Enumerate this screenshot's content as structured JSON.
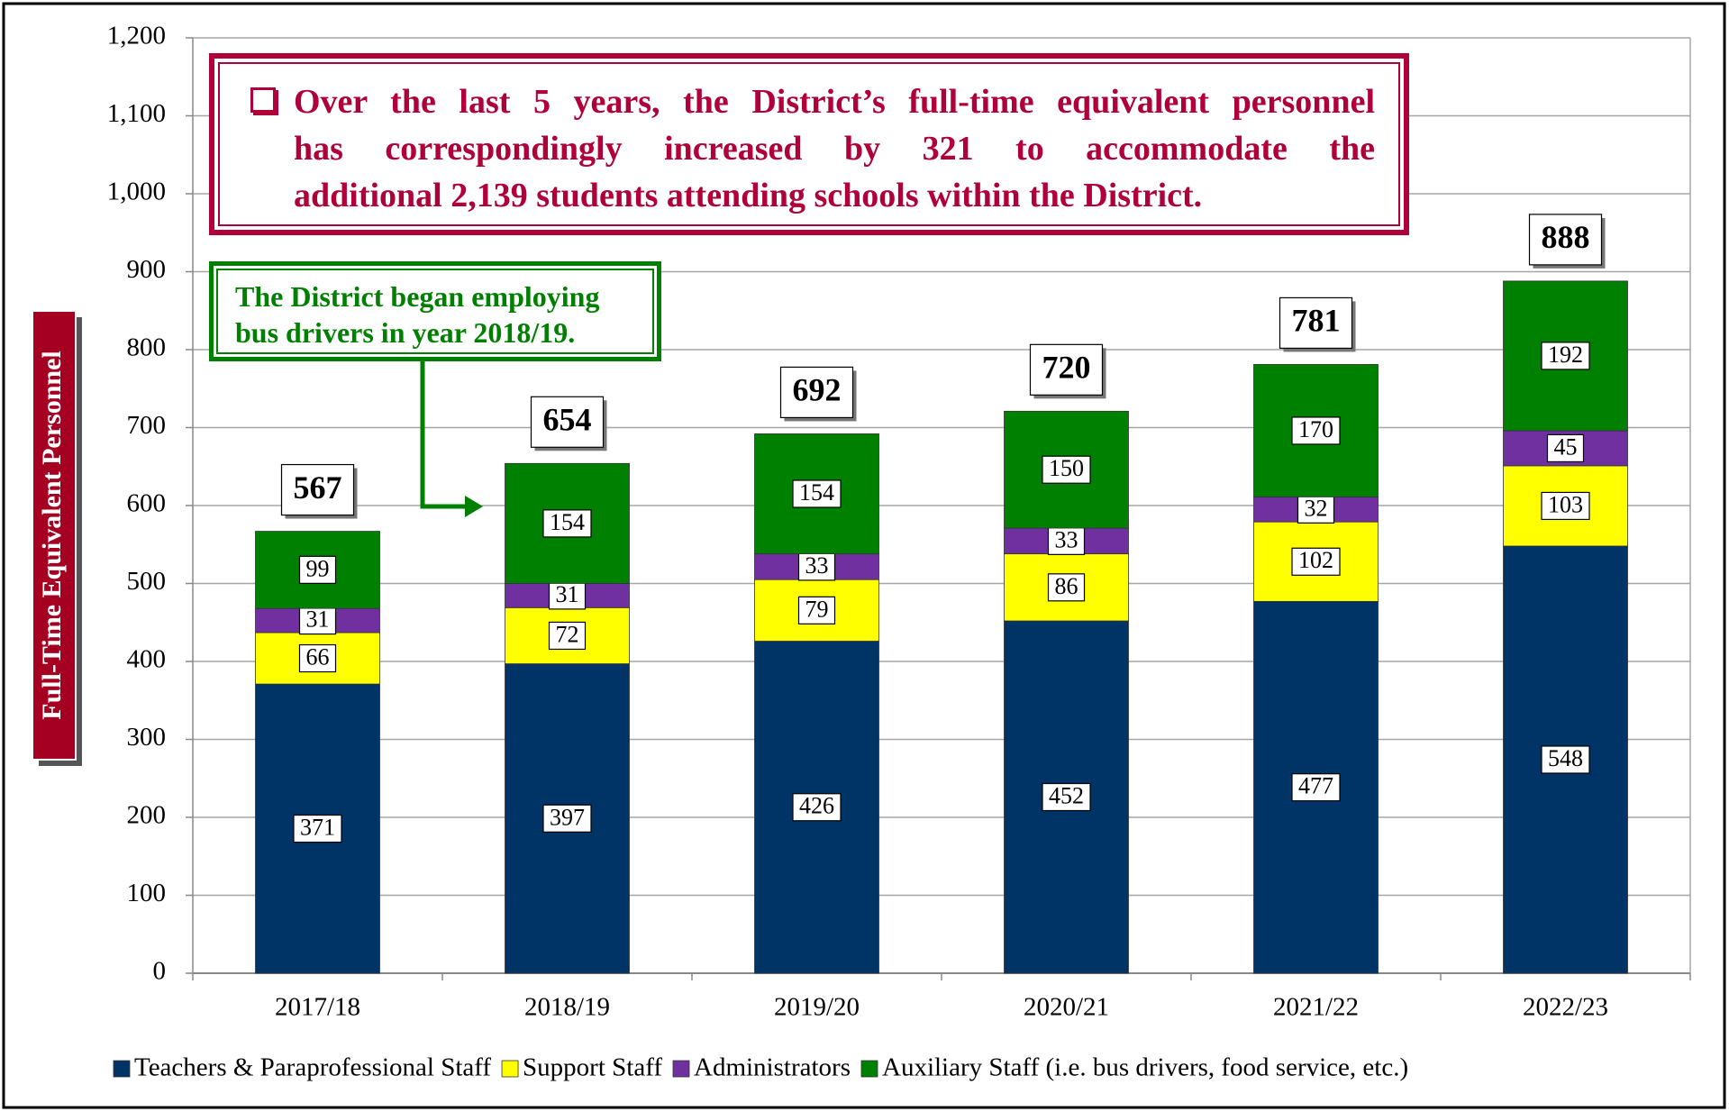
{
  "chart_data": {
    "type": "stacked_bar",
    "y_label": "Full-Time Equivalent Personnel",
    "headline_lines": [
      "Over the last 5 years, the District’s full-time equivalent personnel",
      "has correspondingly increased by 321 to accommodate the",
      "additional 2,139 students attending schools within the District."
    ],
    "callout_lines": [
      "The District began employing",
      "bus drivers in year 2018/19."
    ],
    "categories": [
      "2017/18",
      "2018/19",
      "2019/20",
      "2020/21",
      "2021/22",
      "2022/23"
    ],
    "series": [
      {
        "name": "Teachers & Paraprofessional Staff",
        "color": "#003366",
        "values": [
          371,
          397,
          426,
          452,
          477,
          548
        ]
      },
      {
        "name": "Support Staff",
        "color": "#ffff00",
        "values": [
          66,
          72,
          79,
          86,
          102,
          103
        ]
      },
      {
        "name": "Administrators",
        "color": "#7030a0",
        "values": [
          31,
          31,
          33,
          33,
          32,
          45
        ]
      },
      {
        "name": "Auxiliary Staff (i.e. bus drivers, food service, etc.)",
        "color": "#008000",
        "values": [
          99,
          154,
          154,
          150,
          170,
          192
        ]
      }
    ],
    "totals": [
      567,
      654,
      692,
      720,
      781,
      888
    ],
    "ylim": [
      0,
      1200
    ],
    "yticks": [
      0,
      100,
      200,
      300,
      400,
      500,
      600,
      700,
      800,
      900,
      {
        "value": 1000,
        "label": "1,000"
      },
      {
        "value": 1100,
        "label": "1,100"
      },
      {
        "value": 1200,
        "label": "1,200"
      }
    ],
    "grid": true,
    "legend": "bottom"
  }
}
